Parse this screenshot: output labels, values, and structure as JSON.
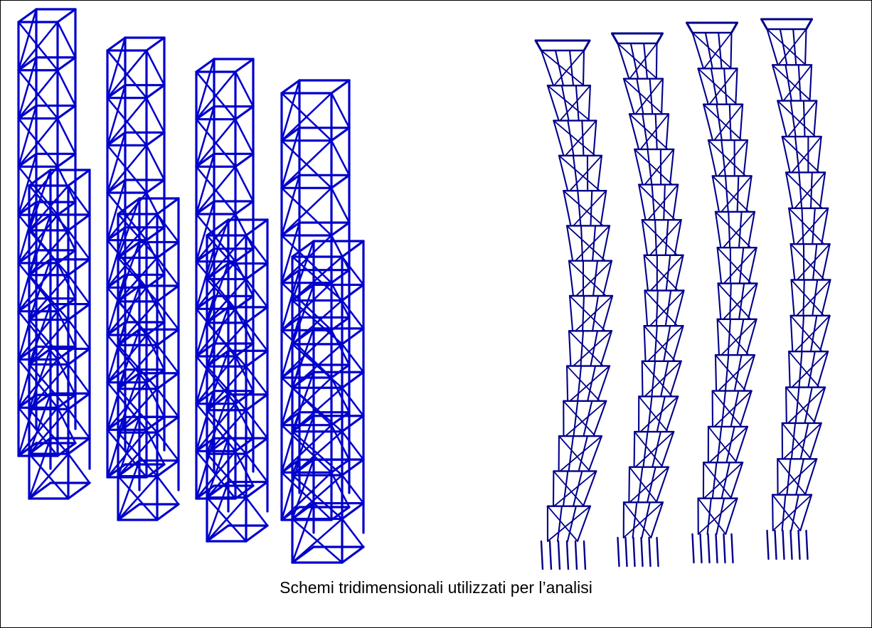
{
  "figure": {
    "caption": "Schemi tridimensionali utilizzati per l’analisi",
    "colors": {
      "frame": "#0000cc",
      "frame_dark": "#00008b",
      "border": "#000000",
      "background": "#ffffff"
    },
    "left_group": {
      "description_icon": "wireframe-tower-perspective",
      "tower_count": 4
    },
    "right_group": {
      "description_icon": "wireframe-tower-deformed",
      "tower_count": 4
    }
  }
}
